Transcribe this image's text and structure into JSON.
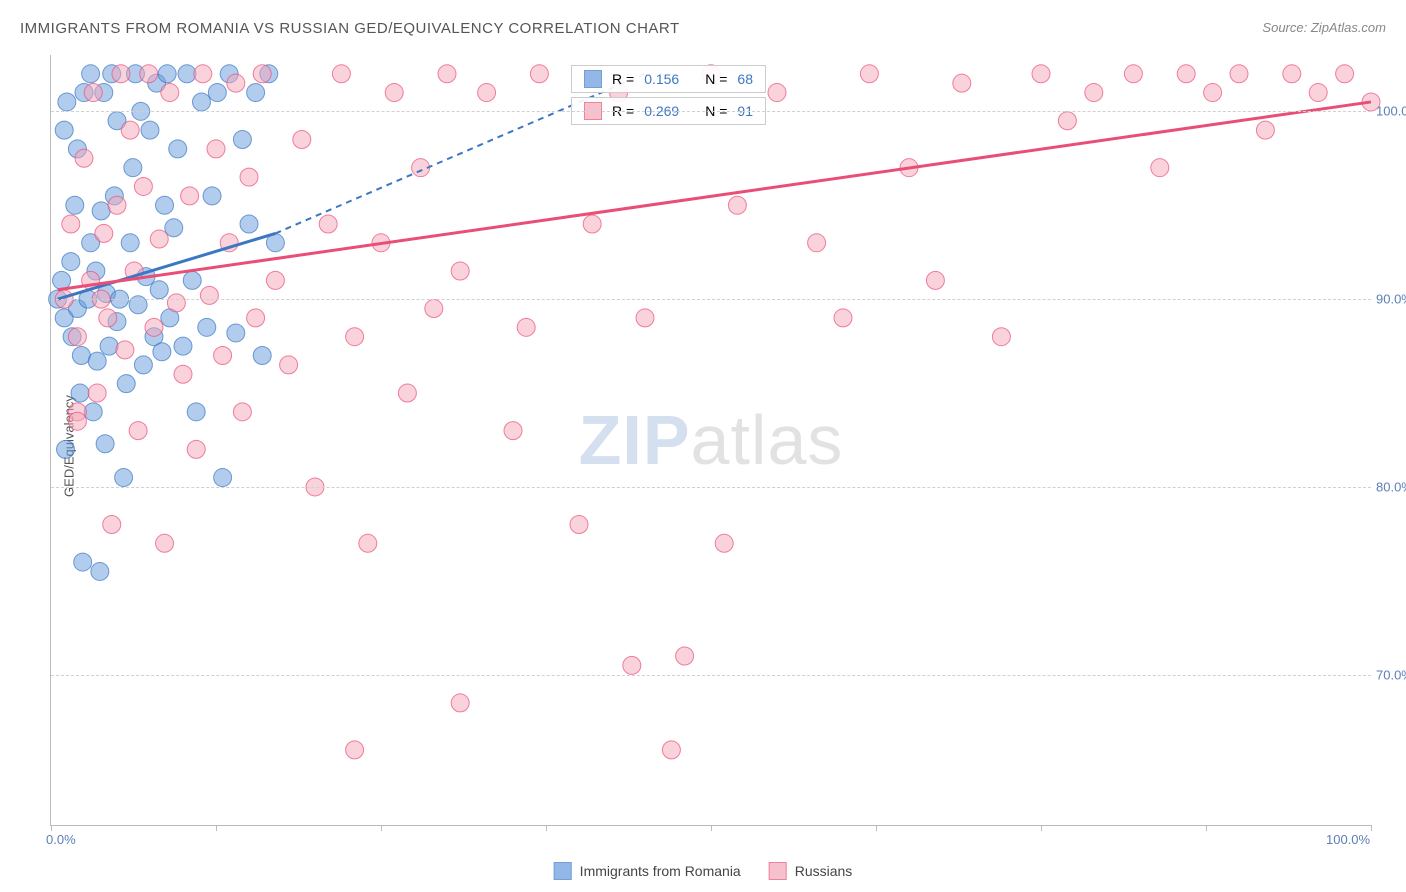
{
  "title": "IMMIGRANTS FROM ROMANIA VS RUSSIAN GED/EQUIVALENCY CORRELATION CHART",
  "source_label": "Source:",
  "source_name": "ZipAtlas.com",
  "ylabel": "GED/Equivalency",
  "watermark_a": "ZIP",
  "watermark_b": "atlas",
  "chart": {
    "type": "scatter",
    "xlim": [
      0,
      100
    ],
    "ylim": [
      62,
      103
    ],
    "xtick_positions": [
      0,
      12.5,
      25,
      37.5,
      50,
      62.5,
      75,
      87.5,
      100
    ],
    "xtick_labels": {
      "0": "0.0%",
      "100": "100.0%"
    },
    "ytick_positions": [
      70,
      80,
      90,
      100
    ],
    "ytick_labels": [
      "70.0%",
      "80.0%",
      "90.0%",
      "100.0%"
    ],
    "grid_color": "#d0d0d0",
    "axis_color": "#bbbbbb",
    "background_color": "#ffffff",
    "marker_radius": 9,
    "marker_opacity": 0.5,
    "label_color": "#5b7fb8",
    "label_fontsize": 13,
    "series": [
      {
        "name": "Immigrants from Romania",
        "color": "#6699dd",
        "stroke": "#3b77c2",
        "r_value": "0.156",
        "n_value": "68",
        "trend_solid": {
          "x1": 0.5,
          "y1": 90,
          "x2": 17,
          "y2": 93.5
        },
        "trend_dash": {
          "x1": 17,
          "y1": 93.5,
          "x2": 45,
          "y2": 102
        },
        "points": [
          [
            0.5,
            90
          ],
          [
            0.8,
            91
          ],
          [
            1,
            89
          ],
          [
            1,
            99
          ],
          [
            1.2,
            100.5
          ],
          [
            1.5,
            92
          ],
          [
            1.6,
            88
          ],
          [
            1.8,
            95
          ],
          [
            2,
            98
          ],
          [
            2,
            89.5
          ],
          [
            2.2,
            85
          ],
          [
            2.3,
            87
          ],
          [
            2.5,
            101
          ],
          [
            2.8,
            90
          ],
          [
            3,
            93
          ],
          [
            3,
            102
          ],
          [
            3.2,
            84
          ],
          [
            3.4,
            91.5
          ],
          [
            3.5,
            86.7
          ],
          [
            3.8,
            94.7
          ],
          [
            4,
            101
          ],
          [
            4.2,
            90.3
          ],
          [
            4.4,
            87.5
          ],
          [
            4.6,
            102
          ],
          [
            4.8,
            95.5
          ],
          [
            5,
            88.8
          ],
          [
            5,
            99.5
          ],
          [
            5.2,
            90
          ],
          [
            5.5,
            80.5
          ],
          [
            5.7,
            85.5
          ],
          [
            6,
            93
          ],
          [
            6.2,
            97
          ],
          [
            6.4,
            102
          ],
          [
            6.6,
            89.7
          ],
          [
            6.8,
            100
          ],
          [
            7,
            86.5
          ],
          [
            7.2,
            91.2
          ],
          [
            7.5,
            99
          ],
          [
            7.8,
            88
          ],
          [
            8,
            101.5
          ],
          [
            8.2,
            90.5
          ],
          [
            8.4,
            87.2
          ],
          [
            8.6,
            95
          ],
          [
            8.8,
            102
          ],
          [
            9,
            89
          ],
          [
            9.3,
            93.8
          ],
          [
            9.6,
            98
          ],
          [
            10,
            87.5
          ],
          [
            10.3,
            102
          ],
          [
            10.7,
            91
          ],
          [
            11,
            84
          ],
          [
            11.4,
            100.5
          ],
          [
            11.8,
            88.5
          ],
          [
            12.2,
            95.5
          ],
          [
            12.6,
            101
          ],
          [
            13,
            80.5
          ],
          [
            13.5,
            102
          ],
          [
            14,
            88.2
          ],
          [
            14.5,
            98.5
          ],
          [
            15,
            94
          ],
          [
            15.5,
            101
          ],
          [
            16,
            87
          ],
          [
            16.5,
            102
          ],
          [
            17,
            93
          ],
          [
            3.7,
            75.5
          ],
          [
            1.1,
            82
          ],
          [
            2.4,
            76
          ],
          [
            4.1,
            82.3
          ]
        ]
      },
      {
        "name": "Russians",
        "color": "#f4a6b8",
        "stroke": "#e94e77",
        "r_value": "0.269",
        "n_value": "91",
        "trend_solid": {
          "x1": 0.5,
          "y1": 90.5,
          "x2": 100,
          "y2": 100.5
        },
        "trend_dash": null,
        "points": [
          [
            1,
            90
          ],
          [
            1.5,
            94
          ],
          [
            2,
            88
          ],
          [
            2,
            84
          ],
          [
            2.5,
            97.5
          ],
          [
            3,
            91
          ],
          [
            3.2,
            101
          ],
          [
            3.5,
            85
          ],
          [
            4,
            93.5
          ],
          [
            4.3,
            89
          ],
          [
            4.6,
            78
          ],
          [
            5,
            95
          ],
          [
            5.3,
            102
          ],
          [
            5.6,
            87.3
          ],
          [
            6,
            99
          ],
          [
            6.3,
            91.5
          ],
          [
            6.6,
            83
          ],
          [
            7,
            96
          ],
          [
            7.4,
            102
          ],
          [
            7.8,
            88.5
          ],
          [
            8.2,
            93.2
          ],
          [
            8.6,
            77
          ],
          [
            9,
            101
          ],
          [
            9.5,
            89.8
          ],
          [
            10,
            86
          ],
          [
            10.5,
            95.5
          ],
          [
            11,
            82
          ],
          [
            11.5,
            102
          ],
          [
            12,
            90.2
          ],
          [
            12.5,
            98
          ],
          [
            13,
            87
          ],
          [
            13.5,
            93
          ],
          [
            14,
            101.5
          ],
          [
            14.5,
            84
          ],
          [
            15,
            96.5
          ],
          [
            15.5,
            89
          ],
          [
            16,
            102
          ],
          [
            17,
            91
          ],
          [
            18,
            86.5
          ],
          [
            19,
            98.5
          ],
          [
            20,
            80
          ],
          [
            21,
            94
          ],
          [
            22,
            102
          ],
          [
            23,
            88
          ],
          [
            24,
            77
          ],
          [
            25,
            93
          ],
          [
            26,
            101
          ],
          [
            27,
            85
          ],
          [
            28,
            97
          ],
          [
            29,
            89.5
          ],
          [
            30,
            102
          ],
          [
            31,
            91.5
          ],
          [
            33,
            101
          ],
          [
            35,
            83
          ],
          [
            36,
            88.5
          ],
          [
            37,
            102
          ],
          [
            40,
            78
          ],
          [
            41,
            94
          ],
          [
            43,
            101
          ],
          [
            45,
            89
          ],
          [
            47,
            66
          ],
          [
            48,
            71
          ],
          [
            50,
            102
          ],
          [
            51,
            77
          ],
          [
            52,
            95
          ],
          [
            55,
            101
          ],
          [
            58,
            93
          ],
          [
            60,
            89
          ],
          [
            62,
            102
          ],
          [
            65,
            97
          ],
          [
            67,
            91
          ],
          [
            69,
            101.5
          ],
          [
            72,
            88
          ],
          [
            75,
            102
          ],
          [
            77,
            99.5
          ],
          [
            79,
            101
          ],
          [
            82,
            102
          ],
          [
            84,
            97
          ],
          [
            86,
            102
          ],
          [
            88,
            101
          ],
          [
            90,
            102
          ],
          [
            92,
            99
          ],
          [
            94,
            102
          ],
          [
            96,
            101
          ],
          [
            98,
            102
          ],
          [
            100,
            100.5
          ],
          [
            23,
            66
          ],
          [
            31,
            68.5
          ],
          [
            44,
            70.5
          ],
          [
            2,
            83.5
          ],
          [
            3.8,
            90
          ]
        ]
      }
    ]
  },
  "legend": {
    "series1_label": "Immigrants from Romania",
    "series2_label": "Russians"
  },
  "stats_labels": {
    "r": "R =",
    "n": "N ="
  }
}
